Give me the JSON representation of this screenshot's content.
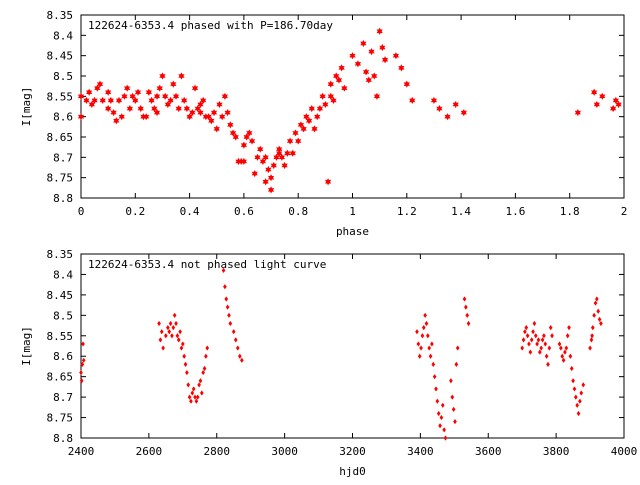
{
  "chart_data": [
    {
      "type": "scatter",
      "title": "122624-6353.4 phased with P=186.70day",
      "xlabel": "phase",
      "ylabel": "I[mag]",
      "xlim": [
        0,
        2
      ],
      "ylim": [
        8.35,
        8.8
      ],
      "y_inverted": true,
      "grid": false,
      "marker": "filled-star",
      "color": "#ff0000",
      "x_ticks": [
        "0",
        "0.2",
        "0.4",
        "0.6",
        "0.8",
        "1",
        "1.2",
        "1.4",
        "1.6",
        "1.8",
        "2"
      ],
      "y_ticks": [
        "8.35",
        "8.4",
        "8.45",
        "8.5",
        "8.55",
        "8.6",
        "8.65",
        "8.7",
        "8.75",
        "8.8"
      ],
      "series": [
        {
          "points": [
            [
              0.0,
              8.55
            ],
            [
              0.02,
              8.56
            ],
            [
              0.03,
              8.54
            ],
            [
              0.04,
              8.57
            ],
            [
              0.05,
              8.56
            ],
            [
              0.06,
              8.53
            ],
            [
              0.07,
              8.52
            ],
            [
              0.08,
              8.56
            ],
            [
              0.1,
              8.58
            ],
            [
              0.11,
              8.56
            ],
            [
              0.12,
              8.59
            ],
            [
              0.13,
              8.61
            ],
            [
              0.14,
              8.56
            ],
            [
              0.15,
              8.6
            ],
            [
              0.16,
              8.55
            ],
            [
              0.17,
              8.53
            ],
            [
              0.18,
              8.58
            ],
            [
              0.19,
              8.55
            ],
            [
              0.2,
              8.56
            ],
            [
              0.21,
              8.54
            ],
            [
              0.22,
              8.58
            ],
            [
              0.23,
              8.6
            ],
            [
              0.24,
              8.6
            ],
            [
              0.25,
              8.54
            ],
            [
              0.26,
              8.56
            ],
            [
              0.27,
              8.58
            ],
            [
              0.28,
              8.55
            ],
            [
              0.29,
              8.53
            ],
            [
              0.3,
              8.5
            ],
            [
              0.31,
              8.55
            ],
            [
              0.32,
              8.57
            ],
            [
              0.33,
              8.56
            ],
            [
              0.34,
              8.52
            ],
            [
              0.35,
              8.55
            ],
            [
              0.36,
              8.58
            ],
            [
              0.37,
              8.5
            ],
            [
              0.38,
              8.56
            ],
            [
              0.39,
              8.58
            ],
            [
              0.4,
              8.6
            ],
            [
              0.41,
              8.59
            ],
            [
              0.42,
              8.53
            ],
            [
              0.43,
              8.58
            ],
            [
              0.44,
              8.59
            ],
            [
              0.45,
              8.56
            ],
            [
              0.46,
              8.6
            ],
            [
              0.47,
              8.6
            ],
            [
              0.48,
              8.61
            ],
            [
              0.49,
              8.59
            ],
            [
              0.5,
              8.63
            ],
            [
              0.51,
              8.57
            ],
            [
              0.52,
              8.6
            ],
            [
              0.53,
              8.55
            ],
            [
              0.54,
              8.59
            ],
            [
              0.55,
              8.62
            ],
            [
              0.56,
              8.64
            ],
            [
              0.57,
              8.65
            ],
            [
              0.58,
              8.71
            ],
            [
              0.59,
              8.71
            ],
            [
              0.6,
              8.67
            ],
            [
              0.61,
              8.65
            ],
            [
              0.62,
              8.64
            ],
            [
              0.63,
              8.66
            ],
            [
              0.64,
              8.74
            ],
            [
              0.65,
              8.7
            ],
            [
              0.66,
              8.68
            ],
            [
              0.67,
              8.71
            ],
            [
              0.68,
              8.7
            ],
            [
              0.69,
              8.73
            ],
            [
              0.7,
              8.75
            ],
            [
              0.71,
              8.72
            ],
            [
              0.72,
              8.7
            ],
            [
              0.73,
              8.68
            ],
            [
              0.74,
              8.7
            ],
            [
              0.75,
              8.72
            ],
            [
              0.76,
              8.69
            ],
            [
              0.77,
              8.66
            ],
            [
              0.78,
              8.69
            ],
            [
              0.79,
              8.64
            ],
            [
              0.8,
              8.66
            ],
            [
              0.81,
              8.62
            ],
            [
              0.82,
              8.63
            ],
            [
              0.83,
              8.6
            ],
            [
              0.84,
              8.61
            ],
            [
              0.85,
              8.58
            ],
            [
              0.86,
              8.63
            ],
            [
              0.87,
              8.6
            ],
            [
              0.88,
              8.58
            ],
            [
              0.89,
              8.55
            ],
            [
              0.9,
              8.57
            ],
            [
              0.91,
              8.76
            ],
            [
              0.92,
              8.52
            ],
            [
              0.93,
              8.56
            ],
            [
              0.94,
              8.5
            ],
            [
              0.95,
              8.51
            ],
            [
              0.96,
              8.48
            ],
            [
              0.97,
              8.53
            ],
            [
              1.0,
              8.45
            ],
            [
              1.02,
              8.47
            ],
            [
              1.04,
              8.42
            ],
            [
              1.05,
              8.49
            ],
            [
              1.06,
              8.51
            ],
            [
              1.07,
              8.44
            ],
            [
              1.08,
              8.5
            ],
            [
              1.09,
              8.55
            ],
            [
              1.1,
              8.39
            ],
            [
              1.11,
              8.43
            ],
            [
              1.12,
              8.46
            ],
            [
              1.16,
              8.45
            ],
            [
              1.18,
              8.48
            ],
            [
              1.2,
              8.52
            ],
            [
              1.22,
              8.56
            ],
            [
              1.3,
              8.56
            ],
            [
              1.32,
              8.58
            ],
            [
              1.35,
              8.6
            ],
            [
              1.38,
              8.57
            ],
            [
              1.41,
              8.59
            ],
            [
              1.83,
              8.59
            ],
            [
              1.89,
              8.54
            ],
            [
              1.9,
              8.57
            ],
            [
              1.92,
              8.55
            ],
            [
              1.96,
              8.58
            ],
            [
              1.97,
              8.56
            ],
            [
              1.98,
              8.57
            ],
            [
              0.0,
              8.6
            ],
            [
              0.1,
              8.54
            ],
            [
              0.28,
              8.59
            ],
            [
              0.44,
              8.57
            ],
            [
              0.6,
              8.71
            ],
            [
              0.68,
              8.76
            ],
            [
              0.7,
              8.78
            ],
            [
              0.73,
              8.69
            ],
            [
              0.92,
              8.55
            ]
          ]
        }
      ]
    },
    {
      "type": "scatter",
      "title": "122624-6353.4 not phased light curve",
      "xlabel": "hjd0",
      "ylabel": "I[mag]",
      "xlim": [
        2400,
        4000
      ],
      "ylim": [
        8.35,
        8.8
      ],
      "y_inverted": true,
      "grid": false,
      "marker": "small-diamond",
      "color": "#ff0000",
      "x_ticks": [
        "2400",
        "2600",
        "2800",
        "3000",
        "3200",
        "3400",
        "3600",
        "3800",
        "4000"
      ],
      "y_ticks": [
        "8.35",
        "8.4",
        "8.45",
        "8.5",
        "8.55",
        "8.6",
        "8.65",
        "8.7",
        "8.75",
        "8.8"
      ],
      "series": [
        {
          "points": [
            [
              2400,
              8.64
            ],
            [
              2402,
              8.66
            ],
            [
              2404,
              8.62
            ],
            [
              2406,
              8.57
            ],
            [
              2408,
              8.61
            ],
            [
              2630,
              8.52
            ],
            [
              2634,
              8.56
            ],
            [
              2638,
              8.54
            ],
            [
              2642,
              8.58
            ],
            [
              2650,
              8.55
            ],
            [
              2656,
              8.53
            ],
            [
              2660,
              8.54
            ],
            [
              2664,
              8.52
            ],
            [
              2668,
              8.55
            ],
            [
              2672,
              8.53
            ],
            [
              2676,
              8.5
            ],
            [
              2680,
              8.52
            ],
            [
              2684,
              8.55
            ],
            [
              2688,
              8.56
            ],
            [
              2692,
              8.54
            ],
            [
              2696,
              8.58
            ],
            [
              2700,
              8.57
            ],
            [
              2704,
              8.6
            ],
            [
              2708,
              8.62
            ],
            [
              2712,
              8.64
            ],
            [
              2716,
              8.67
            ],
            [
              2720,
              8.7
            ],
            [
              2724,
              8.71
            ],
            [
              2728,
              8.69
            ],
            [
              2732,
              8.68
            ],
            [
              2736,
              8.7
            ],
            [
              2740,
              8.71
            ],
            [
              2744,
              8.7
            ],
            [
              2748,
              8.67
            ],
            [
              2752,
              8.66
            ],
            [
              2756,
              8.69
            ],
            [
              2760,
              8.64
            ],
            [
              2764,
              8.63
            ],
            [
              2768,
              8.6
            ],
            [
              2772,
              8.58
            ],
            [
              2820,
              8.39
            ],
            [
              2824,
              8.43
            ],
            [
              2828,
              8.46
            ],
            [
              2832,
              8.48
            ],
            [
              2836,
              8.5
            ],
            [
              2840,
              8.52
            ],
            [
              2850,
              8.54
            ],
            [
              2856,
              8.56
            ],
            [
              2862,
              8.58
            ],
            [
              2868,
              8.6
            ],
            [
              2874,
              8.61
            ],
            [
              3390,
              8.54
            ],
            [
              3394,
              8.57
            ],
            [
              3398,
              8.6
            ],
            [
              3402,
              8.58
            ],
            [
              3406,
              8.55
            ],
            [
              3410,
              8.53
            ],
            [
              3414,
              8.5
            ],
            [
              3418,
              8.52
            ],
            [
              3422,
              8.55
            ],
            [
              3426,
              8.58
            ],
            [
              3430,
              8.6
            ],
            [
              3434,
              8.57
            ],
            [
              3438,
              8.62
            ],
            [
              3442,
              8.65
            ],
            [
              3446,
              8.68
            ],
            [
              3450,
              8.71
            ],
            [
              3454,
              8.74
            ],
            [
              3458,
              8.77
            ],
            [
              3462,
              8.75
            ],
            [
              3466,
              8.72
            ],
            [
              3470,
              8.78
            ],
            [
              3474,
              8.8
            ],
            [
              3490,
              8.66
            ],
            [
              3494,
              8.7
            ],
            [
              3498,
              8.73
            ],
            [
              3502,
              8.76
            ],
            [
              3506,
              8.62
            ],
            [
              3510,
              8.58
            ],
            [
              3530,
              8.46
            ],
            [
              3534,
              8.48
            ],
            [
              3538,
              8.5
            ],
            [
              3542,
              8.52
            ],
            [
              3700,
              8.58
            ],
            [
              3704,
              8.56
            ],
            [
              3708,
              8.54
            ],
            [
              3712,
              8.53
            ],
            [
              3716,
              8.55
            ],
            [
              3720,
              8.57
            ],
            [
              3724,
              8.59
            ],
            [
              3728,
              8.56
            ],
            [
              3732,
              8.54
            ],
            [
              3736,
              8.52
            ],
            [
              3740,
              8.55
            ],
            [
              3744,
              8.57
            ],
            [
              3748,
              8.56
            ],
            [
              3752,
              8.59
            ],
            [
              3756,
              8.58
            ],
            [
              3760,
              8.56
            ],
            [
              3764,
              8.55
            ],
            [
              3768,
              8.57
            ],
            [
              3772,
              8.6
            ],
            [
              3776,
              8.62
            ],
            [
              3780,
              8.58
            ],
            [
              3784,
              8.53
            ],
            [
              3788,
              8.55
            ],
            [
              3810,
              8.57
            ],
            [
              3814,
              8.58
            ],
            [
              3818,
              8.6
            ],
            [
              3822,
              8.61
            ],
            [
              3826,
              8.59
            ],
            [
              3830,
              8.58
            ],
            [
              3834,
              8.55
            ],
            [
              3838,
              8.53
            ],
            [
              3842,
              8.6
            ],
            [
              3846,
              8.63
            ],
            [
              3850,
              8.66
            ],
            [
              3854,
              8.68
            ],
            [
              3858,
              8.7
            ],
            [
              3862,
              8.72
            ],
            [
              3866,
              8.74
            ],
            [
              3870,
              8.71
            ],
            [
              3874,
              8.69
            ],
            [
              3880,
              8.67
            ],
            [
              3900,
              8.58
            ],
            [
              3904,
              8.56
            ],
            [
              3908,
              8.53
            ],
            [
              3912,
              8.5
            ],
            [
              3916,
              8.47
            ],
            [
              3920,
              8.46
            ],
            [
              3924,
              8.49
            ],
            [
              3928,
              8.51
            ],
            [
              3932,
              8.52
            ],
            [
              3906,
              8.55
            ]
          ]
        }
      ]
    }
  ]
}
